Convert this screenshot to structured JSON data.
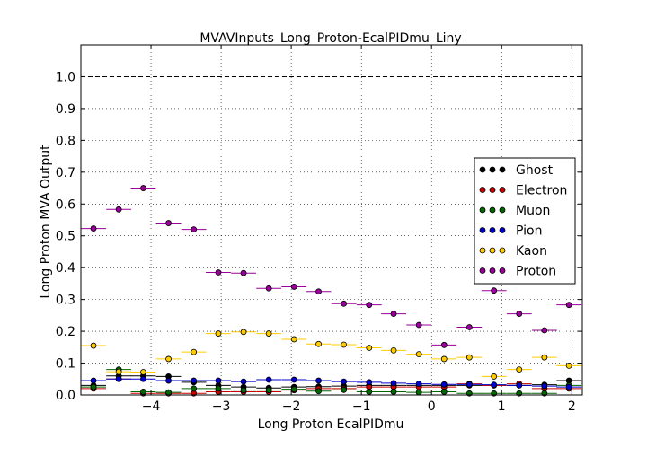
{
  "chart_data": {
    "type": "scatter",
    "title": "MVAVInputs_Long_Proton-EcalPIDmu_Liny",
    "xlabel": "Long Proton EcalPIDmu",
    "ylabel": "Long Proton MVA Output",
    "xlim": [
      -5.0,
      2.15
    ],
    "ylim": [
      0.0,
      1.1
    ],
    "xticks": [
      -4,
      -3,
      -2,
      -1,
      0,
      1,
      2
    ],
    "xtick_labels": [
      "−4",
      "−3",
      "−2",
      "−1",
      "0",
      "1",
      "2"
    ],
    "yticks": [
      0.0,
      0.1,
      0.2,
      0.3,
      0.4,
      0.5,
      0.6,
      0.7,
      0.8,
      0.9,
      1.0
    ],
    "ytick_labels": [
      "0.0",
      "0.1",
      "0.2",
      "0.3",
      "0.4",
      "0.5",
      "0.6",
      "0.7",
      "0.8",
      "0.9",
      "1.0"
    ],
    "reference_line": 1.0,
    "grid": true,
    "legend_position": "right",
    "bin_width": 0.357,
    "x": [
      -4.82,
      -4.46,
      -4.11,
      -3.75,
      -3.39,
      -3.04,
      -2.68,
      -2.32,
      -1.96,
      -1.61,
      -1.25,
      -0.89,
      -0.54,
      -0.18,
      0.18,
      0.54,
      0.89,
      1.25,
      1.61,
      1.96
    ],
    "series": [
      {
        "name": "Ghost",
        "color": "#000000",
        "values": [
          0.03,
          0.06,
          0.06,
          0.058,
          0.04,
          0.03,
          0.025,
          0.022,
          0.025,
          0.026,
          0.028,
          0.03,
          0.03,
          0.03,
          0.03,
          0.03,
          0.03,
          0.03,
          0.032,
          0.045
        ]
      },
      {
        "name": "Electron",
        "color": "#cc0000",
        "values": [
          0.02,
          0.05,
          0.005,
          0.005,
          0.005,
          0.01,
          0.01,
          0.01,
          0.015,
          0.02,
          0.02,
          0.025,
          0.025,
          0.025,
          0.025,
          0.035,
          0.03,
          0.035,
          0.02,
          0.02
        ]
      },
      {
        "name": "Muon",
        "color": "#006600",
        "values": [
          0.025,
          0.08,
          0.01,
          0.008,
          0.02,
          0.02,
          0.015,
          0.015,
          0.018,
          0.012,
          0.016,
          0.01,
          0.01,
          0.008,
          0.01,
          0.005,
          0.005,
          0.005,
          0.005,
          0.03
        ]
      },
      {
        "name": "Pion",
        "color": "#0000cc",
        "values": [
          0.045,
          0.05,
          0.05,
          0.045,
          0.045,
          0.045,
          0.042,
          0.048,
          0.048,
          0.045,
          0.042,
          0.04,
          0.037,
          0.035,
          0.033,
          0.033,
          0.032,
          0.03,
          0.028,
          0.025
        ]
      },
      {
        "name": "Kaon",
        "color": "#ffcc00",
        "values": [
          0.155,
          0.073,
          0.072,
          0.113,
          0.135,
          0.193,
          0.198,
          0.193,
          0.175,
          0.16,
          0.158,
          0.148,
          0.14,
          0.128,
          0.113,
          0.118,
          0.058,
          0.08,
          0.118,
          0.092
        ]
      },
      {
        "name": "Proton",
        "color": "#990099",
        "values": [
          0.523,
          0.583,
          0.65,
          0.54,
          0.52,
          0.385,
          0.383,
          0.335,
          0.34,
          0.325,
          0.287,
          0.283,
          0.255,
          0.22,
          0.157,
          0.213,
          0.328,
          0.255,
          0.203,
          0.283
        ]
      }
    ]
  }
}
